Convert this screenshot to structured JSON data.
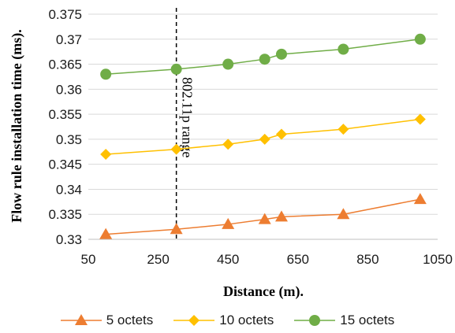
{
  "chart_data": {
    "type": "line",
    "xlabel": "Distance (m).",
    "ylabel": "Flow rule installation time (ms).",
    "xlim": [
      50,
      1050
    ],
    "ylim": [
      0.33,
      0.375
    ],
    "xticks": [
      "50",
      "250",
      "450",
      "650",
      "850",
      "1050"
    ],
    "yticks": [
      "0.33",
      "0.335",
      "0.34",
      "0.345",
      "0.35",
      "0.355",
      "0.36",
      "0.365",
      "0.37",
      "0.375"
    ],
    "grid": "horizontal",
    "legend_position": "bottom",
    "x": [
      100,
      302,
      450,
      555,
      603,
      780,
      1000
    ],
    "series": [
      {
        "name": "5 octets",
        "values": [
          0.331,
          0.332,
          0.333,
          0.334,
          0.3345,
          0.335,
          0.338
        ],
        "color": "#ed7d31",
        "marker": "triangle"
      },
      {
        "name": "10 octets",
        "values": [
          0.347,
          0.348,
          0.349,
          0.35,
          0.351,
          0.352,
          0.354
        ],
        "color": "#ffc000",
        "marker": "diamond"
      },
      {
        "name": "15 octets",
        "values": [
          0.363,
          0.364,
          0.365,
          0.366,
          0.367,
          0.368,
          0.37
        ],
        "color": "#70ad47",
        "marker": "circle"
      }
    ],
    "annotation": {
      "text": "802.11p range",
      "x": 302
    }
  }
}
